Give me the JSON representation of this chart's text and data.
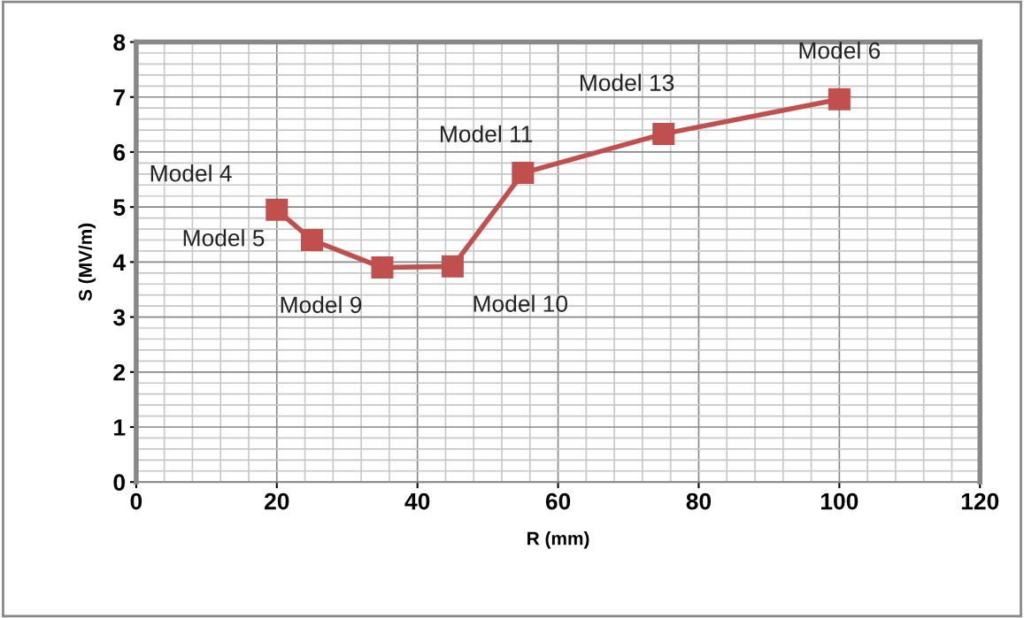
{
  "chart_data": {
    "type": "line",
    "xlabel": "R (mm)",
    "ylabel": "S (MV/m)",
    "x": [
      20,
      25,
      35,
      45,
      55,
      75,
      100
    ],
    "series": [
      {
        "color": "#c0504d",
        "values": [
          4.95,
          4.4,
          3.9,
          3.92,
          5.62,
          6.33,
          6.96
        ]
      }
    ],
    "xlim": [
      0,
      120
    ],
    "xticks": [
      0,
      20,
      40,
      60,
      80,
      100,
      120
    ],
    "ylim": [
      0,
      8
    ],
    "yticks": [
      0,
      1,
      2,
      3,
      4,
      5,
      6,
      7,
      8
    ],
    "grid": true,
    "marker": "square",
    "line_style": "solid",
    "legend": false,
    "annotations": [
      {
        "text": "Model 4",
        "x": 20,
        "y": 4.95
      },
      {
        "text": "Model 5",
        "x": 25,
        "y": 4.4
      },
      {
        "text": "Model 9",
        "x": 35,
        "y": 3.9
      },
      {
        "text": "Model 10",
        "x": 45,
        "y": 3.92
      },
      {
        "text": "Model 11",
        "x": 55,
        "y": 5.62
      },
      {
        "text": "Model 13",
        "x": 75,
        "y": 6.33
      },
      {
        "text": "Model 6",
        "x": 100,
        "y": 6.96
      }
    ]
  }
}
